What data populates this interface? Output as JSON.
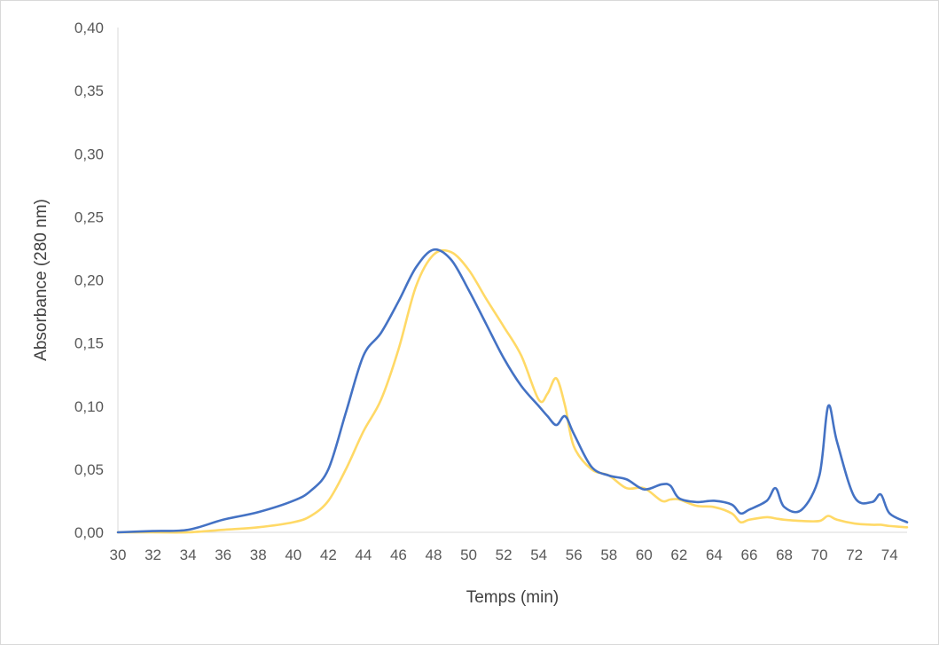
{
  "chart_data": {
    "type": "line",
    "title": "",
    "xlabel": "Temps (min)",
    "ylabel": "Absorbance (280 nm)",
    "xlim": [
      30,
      75
    ],
    "ylim": [
      0,
      0.4
    ],
    "xticks": [
      "30",
      "32",
      "34",
      "36",
      "38",
      "40",
      "42",
      "44",
      "46",
      "48",
      "50",
      "52",
      "54",
      "56",
      "58",
      "60",
      "62",
      "64",
      "66",
      "68",
      "70",
      "72",
      "74"
    ],
    "yticks": [
      "0,00",
      "0,05",
      "0,10",
      "0,15",
      "0,20",
      "0,25",
      "0,30",
      "0,35",
      "0,40"
    ],
    "grid": false,
    "legend": "none",
    "x": [
      30,
      32,
      34,
      36,
      38,
      40,
      41,
      42,
      43,
      44,
      45,
      46,
      47,
      48,
      49,
      50,
      51,
      52,
      53,
      54,
      54.5,
      55,
      55.5,
      56,
      57,
      58,
      59,
      60,
      61,
      61.5,
      62,
      63,
      64,
      65,
      65.5,
      66,
      67,
      67.5,
      68,
      69,
      70,
      70.5,
      71,
      72,
      73,
      73.5,
      74,
      75
    ],
    "series": [
      {
        "color": "#4472c4",
        "values": [
          0.0,
          0.001,
          0.002,
          0.01,
          0.016,
          0.025,
          0.033,
          0.05,
          0.095,
          0.14,
          0.158,
          0.183,
          0.21,
          0.224,
          0.216,
          0.192,
          0.165,
          0.138,
          0.116,
          0.1,
          0.092,
          0.085,
          0.092,
          0.078,
          0.052,
          0.045,
          0.042,
          0.034,
          0.038,
          0.037,
          0.027,
          0.024,
          0.025,
          0.022,
          0.015,
          0.018,
          0.025,
          0.035,
          0.02,
          0.018,
          0.045,
          0.1,
          0.072,
          0.028,
          0.024,
          0.03,
          0.015,
          0.008
        ]
      },
      {
        "color": "#ffd966",
        "values": [
          0.0,
          0.0,
          0.0,
          0.002,
          0.004,
          0.008,
          0.013,
          0.025,
          0.05,
          0.08,
          0.105,
          0.145,
          0.195,
          0.22,
          0.222,
          0.208,
          0.185,
          0.163,
          0.14,
          0.105,
          0.11,
          0.122,
          0.1,
          0.068,
          0.05,
          0.045,
          0.035,
          0.035,
          0.025,
          0.026,
          0.026,
          0.021,
          0.02,
          0.015,
          0.008,
          0.01,
          0.012,
          0.011,
          0.01,
          0.009,
          0.009,
          0.013,
          0.01,
          0.007,
          0.006,
          0.006,
          0.005,
          0.004
        ]
      }
    ]
  }
}
